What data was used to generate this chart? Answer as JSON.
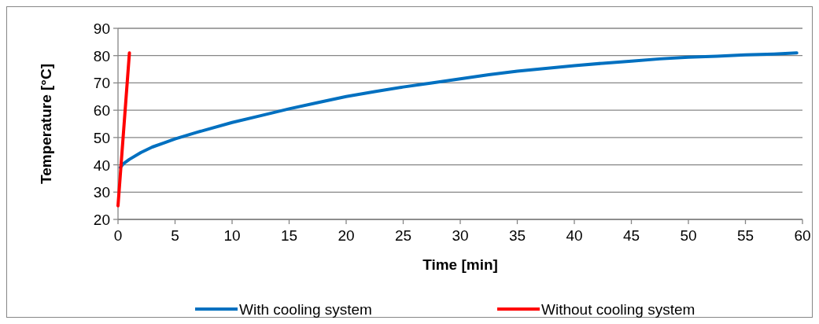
{
  "chart_data": {
    "type": "line",
    "xlabel": "Time [min]",
    "ylabel": "Temperature [°C]",
    "xlim": [
      0,
      60
    ],
    "ylim": [
      20,
      90
    ],
    "xticks": [
      0,
      5,
      10,
      15,
      20,
      25,
      30,
      35,
      40,
      45,
      50,
      55,
      60
    ],
    "yticks": [
      20,
      30,
      40,
      50,
      60,
      70,
      80,
      90
    ],
    "grid": "y",
    "legend": "bottom",
    "marker": "none",
    "line_style": "solid",
    "series": [
      {
        "name": "With cooling system",
        "color": "#0070c0",
        "x": [
          0.2,
          0.5,
          1,
          2,
          3,
          4,
          5,
          7,
          10,
          12.5,
          15,
          17.5,
          20,
          22.5,
          25,
          27.5,
          30,
          32.5,
          35,
          37.5,
          40,
          42.5,
          45,
          47.5,
          50,
          52.5,
          55,
          57.5,
          59.5
        ],
        "values": [
          39,
          40.5,
          42,
          44.5,
          46.5,
          48,
          49.5,
          52,
          55.5,
          58,
          60.5,
          62.8,
          65,
          66.8,
          68.5,
          70,
          71.5,
          73,
          74.3,
          75.3,
          76.3,
          77.2,
          78,
          78.8,
          79.4,
          79.8,
          80.3,
          80.6,
          81
        ]
      },
      {
        "name": "Without cooling system",
        "color": "#ff0000",
        "x": [
          0,
          1
        ],
        "values": [
          25,
          81
        ]
      }
    ]
  }
}
